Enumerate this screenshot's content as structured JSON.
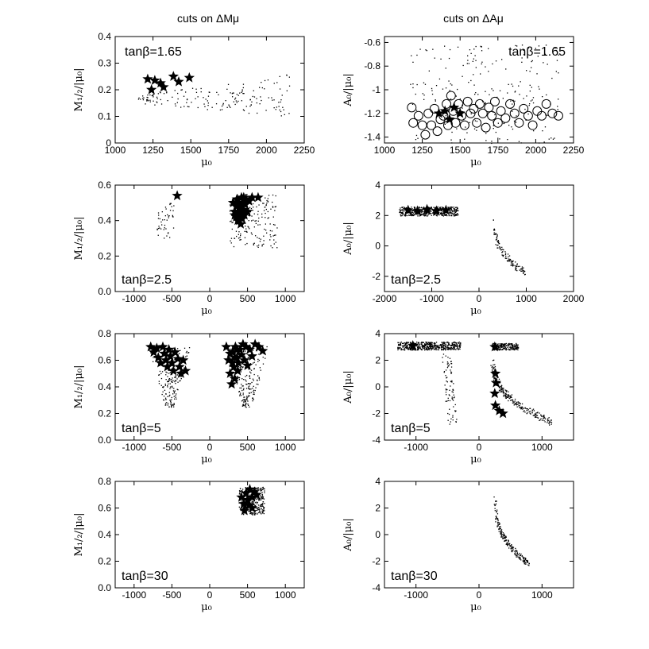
{
  "figure": {
    "column_titles": [
      "cuts on ΔMμ",
      "cuts on ΔAμ"
    ]
  },
  "chart_data": [
    {
      "type": "scatter",
      "id": "a",
      "row": 0,
      "col": 0,
      "annotation": "tanβ=1.65",
      "xlabel": "μ₀",
      "ylabel": "M₁/₂/|μ₀|",
      "xlim": [
        1000,
        2250
      ],
      "ylim": [
        0,
        0.4
      ],
      "xticks": [
        1000,
        1250,
        1500,
        1750,
        2000,
        2250
      ],
      "yticks": [
        0,
        0.1,
        0.2,
        0.3,
        0.4
      ],
      "tick_format": [
        "auto",
        "auto"
      ],
      "regions": [
        {
          "x": [
            1150,
            2150
          ],
          "y": [
            0.1,
            0.26
          ],
          "n": 170,
          "shape": "wedge"
        }
      ],
      "stars": [
        [
          1215,
          0.24
        ],
        [
          1240,
          0.2
        ],
        [
          1262,
          0.235
        ],
        [
          1300,
          0.225
        ],
        [
          1320,
          0.21
        ],
        [
          1385,
          0.25
        ],
        [
          1420,
          0.23
        ],
        [
          1490,
          0.245
        ]
      ],
      "circles": []
    },
    {
      "type": "scatter",
      "id": "b",
      "row": 0,
      "col": 1,
      "annotation": "tanβ=1.65",
      "xlabel": "μ₀",
      "ylabel": "A₀/|μ₀|",
      "xlim": [
        1000,
        2250
      ],
      "ylim": [
        -1.45,
        -0.55
      ],
      "xticks": [
        1000,
        1250,
        1500,
        1750,
        2000,
        2250
      ],
      "yticks": [
        -1.4,
        -1.2,
        -1,
        -0.8,
        -0.6
      ],
      "tick_format": [
        "auto",
        "auto"
      ],
      "regions": [
        {
          "x": [
            1150,
            2150
          ],
          "y": [
            -1.45,
            -0.6
          ],
          "n": 220,
          "shape": "box"
        }
      ],
      "stars": [
        [
          1360,
          -1.2
        ],
        [
          1400,
          -1.18
        ],
        [
          1430,
          -1.25
        ],
        [
          1460,
          -1.15
        ],
        [
          1500,
          -1.2
        ]
      ],
      "circles": [
        [
          1180,
          -1.15
        ],
        [
          1190,
          -1.28
        ],
        [
          1225,
          -1.22
        ],
        [
          1250,
          -1.3
        ],
        [
          1270,
          -1.38
        ],
        [
          1290,
          -1.2
        ],
        [
          1310,
          -1.3
        ],
        [
          1330,
          -1.16
        ],
        [
          1350,
          -1.35
        ],
        [
          1370,
          -1.25
        ],
        [
          1390,
          -1.22
        ],
        [
          1410,
          -1.12
        ],
        [
          1420,
          -1.3
        ],
        [
          1440,
          -1.05
        ],
        [
          1455,
          -1.18
        ],
        [
          1470,
          -1.28
        ],
        [
          1490,
          -1.12
        ],
        [
          1510,
          -1.22
        ],
        [
          1530,
          -1.3
        ],
        [
          1550,
          -1.1
        ],
        [
          1570,
          -1.2
        ],
        [
          1590,
          -1.16
        ],
        [
          1610,
          -1.28
        ],
        [
          1630,
          -1.12
        ],
        [
          1650,
          -1.2
        ],
        [
          1670,
          -1.32
        ],
        [
          1690,
          -1.15
        ],
        [
          1710,
          -1.22
        ],
        [
          1730,
          -1.1
        ],
        [
          1750,
          -1.28
        ],
        [
          1770,
          -1.18
        ],
        [
          1800,
          -1.24
        ],
        [
          1830,
          -1.12
        ],
        [
          1860,
          -1.2
        ],
        [
          1890,
          -1.28
        ],
        [
          1920,
          -1.16
        ],
        [
          1950,
          -1.22
        ],
        [
          1980,
          -1.3
        ],
        [
          2010,
          -1.18
        ],
        [
          2040,
          -1.22
        ],
        [
          2070,
          -1.12
        ],
        [
          2110,
          -1.2
        ],
        [
          2150,
          -1.22
        ]
      ]
    },
    {
      "type": "scatter",
      "id": "c",
      "row": 1,
      "col": 0,
      "annotation": "tanβ=2.5",
      "xlabel": "μ₀",
      "ylabel": "M₁/₂/|μ₀|",
      "xlim": [
        -1250,
        1250
      ],
      "ylim": [
        0,
        0.6
      ],
      "xticks": [
        -1000,
        -500,
        0,
        500,
        1000
      ],
      "yticks": [
        0,
        0.2,
        0.4,
        0.6
      ],
      "tick_format": [
        "auto",
        "fixed1"
      ],
      "regions": [
        {
          "x": [
            -700,
            -480
          ],
          "y": [
            0.3,
            0.5
          ],
          "n": 45,
          "shape": "box"
        },
        {
          "x": [
            260,
            900
          ],
          "y": [
            0.25,
            0.55
          ],
          "n": 170,
          "shape": "box"
        }
      ],
      "stars": [
        [
          -430,
          0.54
        ],
        [
          640,
          0.53
        ],
        [
          310,
          0.5
        ],
        [
          330,
          0.45
        ],
        [
          350,
          0.48
        ],
        [
          360,
          0.52
        ],
        [
          370,
          0.4
        ],
        [
          380,
          0.42
        ],
        [
          390,
          0.47
        ],
        [
          400,
          0.44
        ],
        [
          410,
          0.38
        ],
        [
          420,
          0.53
        ],
        [
          430,
          0.41
        ],
        [
          440,
          0.5
        ],
        [
          450,
          0.46
        ],
        [
          460,
          0.43
        ],
        [
          470,
          0.49
        ],
        [
          480,
          0.52
        ],
        [
          500,
          0.45
        ],
        [
          520,
          0.51
        ],
        [
          560,
          0.53
        ],
        [
          330,
          0.43
        ],
        [
          350,
          0.42
        ],
        [
          370,
          0.5
        ],
        [
          390,
          0.4
        ],
        [
          410,
          0.48
        ],
        [
          430,
          0.46
        ],
        [
          450,
          0.53
        ],
        [
          370,
          0.45
        ],
        [
          390,
          0.43
        ]
      ],
      "circles": []
    },
    {
      "type": "scatter",
      "id": "d",
      "row": 1,
      "col": 1,
      "annotation": "tanβ=2.5",
      "xlabel": "μ₀",
      "ylabel": "A₀/|μ₀|",
      "xlim": [
        -2000,
        2000
      ],
      "ylim": [
        -3,
        4
      ],
      "xticks": [
        -2000,
        -1000,
        0,
        1000,
        2000
      ],
      "yticks": [
        -2,
        0,
        2,
        4
      ],
      "tick_format": [
        "auto",
        "auto"
      ],
      "regions": [
        {
          "x": [
            -1700,
            -450
          ],
          "y": [
            2.0,
            2.6
          ],
          "n": 450,
          "shape": "band"
        },
        {
          "x": [
            300,
            1000
          ],
          "y": [
            -1.8,
            2.0
          ],
          "n": 120,
          "shape": "curve"
        }
      ],
      "stars": [
        [
          -1500,
          2.35
        ],
        [
          -1300,
          2.3
        ],
        [
          -1100,
          2.4
        ],
        [
          -900,
          2.3
        ],
        [
          -700,
          2.35
        ]
      ],
      "circles": []
    },
    {
      "type": "scatter",
      "id": "e",
      "row": 2,
      "col": 0,
      "annotation": "tanβ=5",
      "xlabel": "μ₀",
      "ylabel": "M₁/₂/|μ₀|",
      "xlim": [
        -1250,
        1250
      ],
      "ylim": [
        0,
        0.8
      ],
      "xticks": [
        -1000,
        -500,
        0,
        500,
        1000
      ],
      "yticks": [
        0,
        0.2,
        0.4,
        0.6,
        0.8
      ],
      "tick_format": [
        "auto",
        "fixed1"
      ],
      "regions": [
        {
          "x": [
            -820,
            -250
          ],
          "y": [
            0.25,
            0.72
          ],
          "n": 180,
          "shape": "vee"
        },
        {
          "x": [
            200,
            780
          ],
          "y": [
            0.25,
            0.72
          ],
          "n": 200,
          "shape": "vee"
        }
      ],
      "stars": [
        [
          -780,
          0.7
        ],
        [
          -740,
          0.66
        ],
        [
          -700,
          0.69
        ],
        [
          -680,
          0.62
        ],
        [
          -650,
          0.58
        ],
        [
          -620,
          0.7
        ],
        [
          -600,
          0.65
        ],
        [
          -580,
          0.6
        ],
        [
          -560,
          0.55
        ],
        [
          -540,
          0.68
        ],
        [
          -520,
          0.63
        ],
        [
          -500,
          0.58
        ],
        [
          -480,
          0.52
        ],
        [
          -460,
          0.66
        ],
        [
          -420,
          0.61
        ],
        [
          -400,
          0.55
        ],
        [
          -380,
          0.5
        ],
        [
          -350,
          0.6
        ],
        [
          -320,
          0.52
        ],
        [
          220,
          0.7
        ],
        [
          250,
          0.6
        ],
        [
          270,
          0.5
        ],
        [
          290,
          0.42
        ],
        [
          300,
          0.66
        ],
        [
          320,
          0.55
        ],
        [
          330,
          0.46
        ],
        [
          340,
          0.7
        ],
        [
          360,
          0.62
        ],
        [
          370,
          0.52
        ],
        [
          380,
          0.58
        ],
        [
          400,
          0.68
        ],
        [
          420,
          0.64
        ],
        [
          440,
          0.72
        ],
        [
          460,
          0.6
        ],
        [
          480,
          0.7
        ],
        [
          500,
          0.56
        ],
        [
          530,
          0.68
        ],
        [
          560,
          0.63
        ],
        [
          600,
          0.72
        ],
        [
          650,
          0.7
        ],
        [
          700,
          0.67
        ],
        [
          270,
          0.65
        ],
        [
          300,
          0.58
        ],
        [
          330,
          0.62
        ],
        [
          360,
          0.68
        ]
      ],
      "circles": []
    },
    {
      "type": "scatter",
      "id": "f",
      "row": 2,
      "col": 1,
      "annotation": "tanβ=5",
      "xlabel": "μ₀",
      "ylabel": "A₀/|μ₀|",
      "xlim": [
        -1500,
        1500
      ],
      "ylim": [
        -4,
        4
      ],
      "xticks": [
        -1000,
        0,
        1000
      ],
      "yticks": [
        -4,
        -2,
        0,
        2,
        4
      ],
      "tick_format": [
        "auto",
        "auto"
      ],
      "regions": [
        {
          "x": [
            -1300,
            -300
          ],
          "y": [
            2.8,
            3.4
          ],
          "n": 500,
          "shape": "band"
        },
        {
          "x": [
            -500,
            -350
          ],
          "y": [
            -2.8,
            2.5
          ],
          "n": 80,
          "shape": "stripe"
        },
        {
          "x": [
            200,
            620
          ],
          "y": [
            2.8,
            3.3
          ],
          "n": 200,
          "shape": "band"
        },
        {
          "x": [
            200,
            1150
          ],
          "y": [
            -2.6,
            2.5
          ],
          "n": 240,
          "shape": "curve"
        }
      ],
      "stars": [
        [
          -1050,
          3.1
        ],
        [
          250,
          3.0
        ],
        [
          260,
          1.0
        ],
        [
          270,
          0.3
        ],
        [
          250,
          -0.5
        ],
        [
          260,
          -1.4
        ],
        [
          320,
          -1.8
        ],
        [
          380,
          -2.0
        ]
      ],
      "circles": []
    },
    {
      "type": "scatter",
      "id": "g",
      "row": 3,
      "col": 0,
      "annotation": "tanβ=30",
      "xlabel": "μ₀",
      "ylabel": "M₁/₂/|μ₀|",
      "xlim": [
        -1250,
        1250
      ],
      "ylim": [
        0,
        0.8
      ],
      "xticks": [
        -1000,
        -500,
        0,
        500,
        1000
      ],
      "yticks": [
        0,
        0.2,
        0.4,
        0.6,
        0.8
      ],
      "tick_format": [
        "auto",
        "fixed1"
      ],
      "regions": [
        {
          "x": [
            380,
            720
          ],
          "y": [
            0.55,
            0.76
          ],
          "n": 300,
          "shape": "box"
        }
      ],
      "stars": [
        [
          420,
          0.68
        ],
        [
          450,
          0.63
        ],
        [
          480,
          0.71
        ],
        [
          500,
          0.66
        ],
        [
          530,
          0.74
        ],
        [
          560,
          0.68
        ],
        [
          590,
          0.72
        ],
        [
          620,
          0.7
        ],
        [
          460,
          0.58
        ],
        [
          520,
          0.62
        ],
        [
          560,
          0.6
        ]
      ],
      "circles": []
    },
    {
      "type": "scatter",
      "id": "h",
      "row": 3,
      "col": 1,
      "annotation": "tanβ=30",
      "xlabel": "μ₀",
      "ylabel": "A₀/|μ₀|",
      "xlim": [
        -1500,
        1500
      ],
      "ylim": [
        -4,
        4
      ],
      "xticks": [
        -1000,
        0,
        1000
      ],
      "yticks": [
        -4,
        -2,
        0,
        2,
        4
      ],
      "tick_format": [
        "auto",
        "auto"
      ],
      "regions": [
        {
          "x": [
            250,
            800
          ],
          "y": [
            -2.2,
            3.0
          ],
          "n": 200,
          "shape": "curve"
        }
      ],
      "stars": [],
      "circles": []
    }
  ]
}
